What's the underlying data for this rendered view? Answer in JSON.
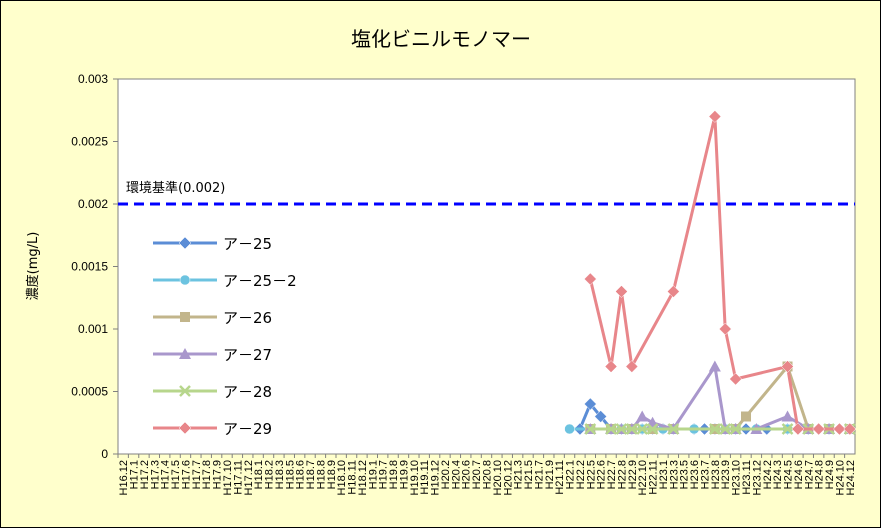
{
  "chart_data": {
    "type": "line",
    "title": "塩化ビニルモノマー",
    "ylabel": "濃度(mg/L)",
    "xlabel": "",
    "ylim": [
      0,
      0.003
    ],
    "yticks": [
      "0",
      "0.0005",
      "0.001",
      "0.0015",
      "0.002",
      "0.0025",
      "0.003"
    ],
    "ytick_values": [
      0,
      0.0005,
      0.001,
      0.0015,
      0.002,
      0.0025,
      0.003
    ],
    "categories": [
      "H16.12",
      "H17.1",
      "H17.2",
      "H17.3",
      "H17.4",
      "H17.5",
      "H17.6",
      "H17.7",
      "H17.8",
      "H17.9",
      "H17.10",
      "H17.11",
      "H17.12",
      "H18.1",
      "H18.2",
      "H18.3",
      "H18.5",
      "H18.6",
      "H18.7",
      "H18.8",
      "H18.9",
      "H18.10",
      "H18.11",
      "H18.12",
      "H19.1",
      "H19.7",
      "H19.8",
      "H19.9",
      "H19.10",
      "H19.11",
      "H19.12",
      "H20.2",
      "H20.4",
      "H20.6",
      "H20.7",
      "H20.8",
      "H20.10",
      "H20.12",
      "H21.3",
      "H21.5",
      "H21.7",
      "H21.9",
      "H21.11",
      "H22.1",
      "H22.2",
      "H22.5",
      "H22.6",
      "H22.7",
      "H22.8",
      "H22.9",
      "H22.10",
      "H22.11",
      "H23.1",
      "H23.3",
      "H23.5",
      "H23.6",
      "H23.7",
      "H23.8",
      "H23.9",
      "H23.10",
      "H23.11",
      "H23.12",
      "H24.2",
      "H24.3",
      "H24.5",
      "H24.6",
      "H24.7",
      "H24.8",
      "H24.9",
      "H24.10",
      "H24.12"
    ],
    "grid": false,
    "legend": "left",
    "reference_line": {
      "label": "環境基準(0.002)",
      "value": 0.002,
      "color": "#0000ff"
    },
    "series": [
      {
        "name": "ア－25",
        "color": "#5b8dd6",
        "marker": "diamond",
        "points": [
          [
            "H22.2",
            0.0002
          ],
          [
            "H22.5",
            0.0004
          ],
          [
            "H22.6",
            0.0003
          ],
          [
            "H22.7",
            0.0002
          ],
          [
            "H22.8",
            0.0002
          ],
          [
            "H22.9",
            0.0002
          ],
          [
            "H22.10",
            0.0002
          ],
          [
            "H22.11",
            0.0002
          ],
          [
            "H23.1",
            0.0002
          ],
          [
            "H23.3",
            0.0002
          ],
          [
            "H23.6",
            0.0002
          ],
          [
            "H23.7",
            0.0002
          ],
          [
            "H23.8",
            0.0002
          ],
          [
            "H23.9",
            0.0002
          ],
          [
            "H23.10",
            0.0002
          ],
          [
            "H23.11",
            0.0002
          ],
          [
            "H24.2",
            0.0002
          ],
          [
            "H24.5",
            0.0002
          ],
          [
            "H24.7",
            0.0002
          ],
          [
            "H24.9",
            0.0002
          ],
          [
            "H24.12",
            0.0002
          ]
        ]
      },
      {
        "name": "ア－25－2",
        "color": "#6cc3e0",
        "marker": "circle",
        "points": [
          [
            "H22.1",
            0.0002
          ],
          [
            "H22.5",
            0.0002
          ],
          [
            "H22.7",
            0.0002
          ],
          [
            "H22.8",
            0.0002
          ],
          [
            "H22.9",
            0.0002
          ],
          [
            "H22.10",
            0.0002
          ],
          [
            "H22.11",
            0.0002
          ],
          [
            "H23.1",
            0.0002
          ],
          [
            "H23.3",
            0.0002
          ],
          [
            "H23.6",
            0.0002
          ],
          [
            "H23.8",
            0.0002
          ],
          [
            "H23.9",
            0.0002
          ],
          [
            "H23.10",
            0.0002
          ],
          [
            "H23.12",
            0.0002
          ],
          [
            "H24.5",
            0.0002
          ],
          [
            "H24.7",
            0.0002
          ],
          [
            "H24.9",
            0.0002
          ],
          [
            "H24.12",
            0.0002
          ]
        ]
      },
      {
        "name": "ア－26",
        "color": "#c2b58b",
        "marker": "square",
        "points": [
          [
            "H22.5",
            0.0002
          ],
          [
            "H22.7",
            0.0002
          ],
          [
            "H22.9",
            0.0002
          ],
          [
            "H22.11",
            0.0002
          ],
          [
            "H23.3",
            0.0002
          ],
          [
            "H23.8",
            0.0002
          ],
          [
            "H23.10",
            0.0002
          ],
          [
            "H23.11",
            0.0003
          ],
          [
            "H24.5",
            0.0007
          ],
          [
            "H24.7",
            0.0002
          ],
          [
            "H24.9",
            0.0002
          ],
          [
            "H24.12",
            0.0002
          ]
        ]
      },
      {
        "name": "ア－27",
        "color": "#a997cc",
        "marker": "triangle",
        "points": [
          [
            "H22.5",
            0.0002
          ],
          [
            "H22.7",
            0.0002
          ],
          [
            "H22.8",
            0.0002
          ],
          [
            "H22.9",
            0.0002
          ],
          [
            "H22.10",
            0.0003
          ],
          [
            "H22.11",
            0.00025
          ],
          [
            "H23.3",
            0.0002
          ],
          [
            "H23.8",
            0.0007
          ],
          [
            "H23.9",
            0.0002
          ],
          [
            "H23.10",
            0.0002
          ],
          [
            "H23.12",
            0.0002
          ],
          [
            "H24.5",
            0.0003
          ],
          [
            "H24.7",
            0.0002
          ],
          [
            "H24.9",
            0.0002
          ],
          [
            "H24.12",
            0.0002
          ]
        ]
      },
      {
        "name": "ア－28",
        "color": "#b7d68c",
        "marker": "x",
        "points": [
          [
            "H22.5",
            0.0002
          ],
          [
            "H22.7",
            0.0002
          ],
          [
            "H22.8",
            0.0002
          ],
          [
            "H22.9",
            0.0002
          ],
          [
            "H22.10",
            0.0002
          ],
          [
            "H22.11",
            0.0002
          ],
          [
            "H23.3",
            0.0002
          ],
          [
            "H23.8",
            0.0002
          ],
          [
            "H23.9",
            0.0002
          ],
          [
            "H23.10",
            0.0002
          ],
          [
            "H24.5",
            0.0002
          ],
          [
            "H24.7",
            0.0002
          ],
          [
            "H24.9",
            0.0002
          ],
          [
            "H24.12",
            0.0002
          ]
        ]
      },
      {
        "name": "ア－29",
        "color": "#e8868a",
        "marker": "diamond",
        "points": [
          [
            "H22.5",
            0.0014
          ],
          [
            "H22.7",
            0.0007
          ],
          [
            "H22.8",
            0.0013
          ],
          [
            "H22.9",
            0.0007
          ],
          [
            "H23.3",
            0.0013
          ],
          [
            "H23.8",
            0.0027
          ],
          [
            "H23.9",
            0.001
          ],
          [
            "H23.10",
            0.0006
          ],
          [
            "H24.5",
            0.0007
          ],
          [
            "H24.6",
            0.0002
          ],
          [
            "H24.8",
            0.0002
          ],
          [
            "H24.10",
            0.0002
          ],
          [
            "H24.12",
            0.0002
          ]
        ]
      }
    ]
  }
}
